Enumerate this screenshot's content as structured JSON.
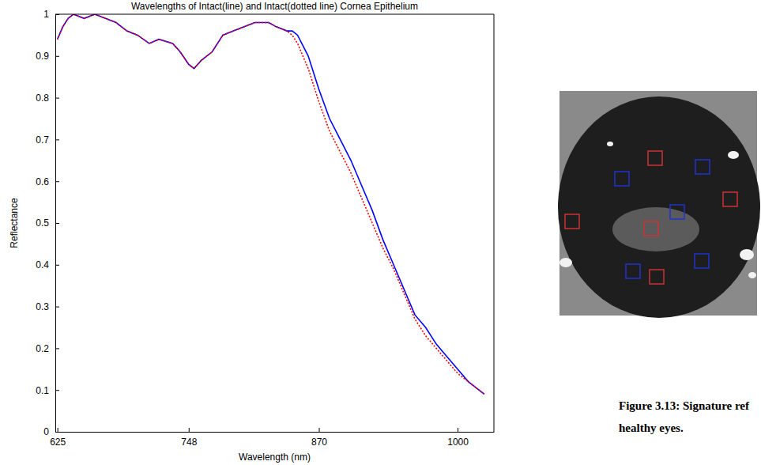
{
  "chart_data": {
    "type": "line",
    "title": "Wavelengths of Intact(line) and Intact(dotted line) Cornea Epithelium",
    "x_label": "Wavelength (nm)",
    "y_label": "Reflectance",
    "x": [
      625,
      630,
      635,
      640,
      650,
      660,
      670,
      680,
      690,
      700,
      711,
      720,
      733,
      740,
      748,
      753,
      760,
      770,
      780,
      790,
      800,
      810,
      823,
      830,
      840,
      845,
      850,
      860,
      870,
      880,
      890,
      900,
      910,
      920,
      930,
      940,
      950,
      960,
      970,
      980,
      990,
      1000,
      1010,
      1020,
      1025
    ],
    "series": [
      {
        "color": "#0000ff",
        "line_style": "solid",
        "values": [
          0.94,
          0.97,
          0.99,
          1.0,
          0.99,
          1.0,
          0.99,
          0.98,
          0.96,
          0.95,
          0.93,
          0.94,
          0.93,
          0.91,
          0.88,
          0.87,
          0.89,
          0.91,
          0.95,
          0.96,
          0.97,
          0.98,
          0.98,
          0.97,
          0.96,
          0.96,
          0.95,
          0.9,
          0.82,
          0.75,
          0.7,
          0.65,
          0.59,
          0.53,
          0.46,
          0.4,
          0.34,
          0.28,
          0.25,
          0.21,
          0.18,
          0.15,
          0.12,
          0.1,
          0.09
        ]
      },
      {
        "color": "#ff0000",
        "line_style": "dotted",
        "values": [
          0.94,
          0.97,
          0.99,
          1.0,
          0.99,
          1.0,
          0.99,
          0.98,
          0.96,
          0.95,
          0.93,
          0.94,
          0.93,
          0.91,
          0.88,
          0.87,
          0.89,
          0.91,
          0.95,
          0.96,
          0.97,
          0.98,
          0.98,
          0.97,
          0.96,
          0.95,
          0.93,
          0.87,
          0.79,
          0.72,
          0.67,
          0.62,
          0.56,
          0.5,
          0.44,
          0.39,
          0.33,
          0.27,
          0.23,
          0.2,
          0.17,
          0.14,
          0.12,
          0.1,
          0.09
        ]
      }
    ],
    "xlim": [
      623,
      1034
    ],
    "xticks": [
      625,
      748,
      870,
      1000
    ],
    "ylim": [
      0,
      1
    ],
    "yticks": [
      0,
      0.1,
      0.2,
      0.3,
      0.4,
      0.5,
      0.6,
      0.7,
      0.8,
      0.9,
      1
    ],
    "grid": false
  },
  "caption": [
    "Figure 3.13: Signature ref",
    "healthy eyes."
  ]
}
